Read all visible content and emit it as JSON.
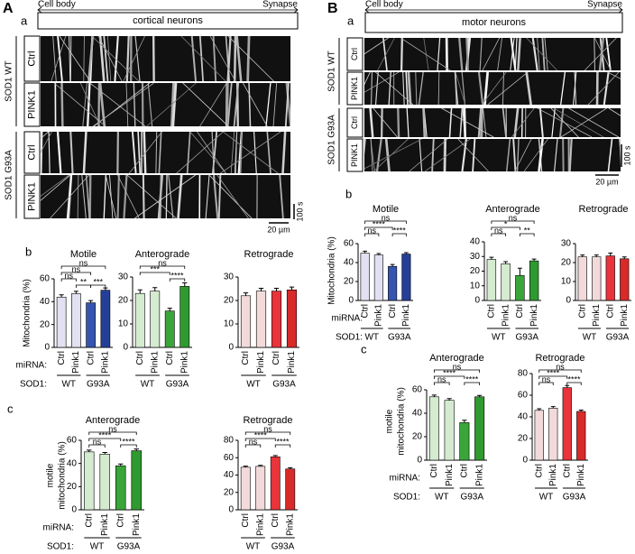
{
  "panel_A": {
    "label": "A",
    "a": {
      "label": "a",
      "cell_body": "Cell body",
      "synapse": "Synapse",
      "cell_type": "cortical neurons",
      "genotypes": [
        {
          "name": "SOD1 WT",
          "conditions": [
            "Ctrl",
            "PINK1"
          ]
        },
        {
          "name": "SOD1 G93A",
          "conditions": [
            "Ctrl",
            "PINK1"
          ]
        }
      ],
      "time_scale": "100 s",
      "length_scale": "20 µm"
    },
    "b": {
      "label": "b",
      "ylabel": "Mitochondria (%)",
      "mirna": "miRNA:",
      "sod1": "SOD1:"
    },
    "c": {
      "label": "c",
      "ylabel": [
        "motile",
        "mitochondria (%)"
      ],
      "mirna": "miRNA:",
      "sod1": "SOD1:"
    }
  },
  "panel_B": {
    "label": "B",
    "a": {
      "label": "a",
      "cell_body": "Cell body",
      "synapse": "Synapse",
      "cell_type": "motor neurons",
      "genotypes": [
        {
          "name": "SOD1 WT",
          "conditions": [
            "Ctrl",
            "PINK1"
          ]
        },
        {
          "name": "SOD1 G93A",
          "conditions": [
            "Ctrl",
            "PINK1"
          ]
        }
      ],
      "time_scale": "100 s",
      "length_scale": "20 µm"
    },
    "b": {
      "label": "b",
      "ylabel": "Mitochondria (%)",
      "mirna": "miRNA:",
      "sod1": "SOD1:"
    },
    "c": {
      "label": "c",
      "ylabel": [
        "motile",
        "mitochondria (%)"
      ],
      "mirna": "miRNA:",
      "sod1": "SOD1:"
    }
  },
  "chart_data": [
    {
      "type": "bar",
      "title": "Motile",
      "categories": [
        "Ctrl",
        "Pink1",
        "Ctrl",
        "Pink1"
      ],
      "groups": [
        "WT",
        "G93A"
      ],
      "values": [
        44,
        47,
        39,
        50
      ],
      "errors": [
        2,
        2,
        2,
        2
      ],
      "colors": [
        "#e2e1f2",
        "#e2e1f2",
        "#3555b0",
        "#233f98"
      ],
      "ylim": [
        0,
        60
      ],
      "yticks": [
        0,
        20,
        40,
        60
      ],
      "annotations": [
        "ns",
        "ns",
        "ns",
        "**",
        "***"
      ]
    },
    {
      "type": "bar",
      "title": "Anterograde",
      "categories": [
        "Ctrl",
        "Pink1",
        "Ctrl",
        "Pink1"
      ],
      "groups": [
        "WT",
        "G93A"
      ],
      "values": [
        23,
        24,
        15.5,
        26
      ],
      "errors": [
        1.5,
        1.5,
        1.2,
        1.5
      ],
      "colors": [
        "#d4ebd0",
        "#d4ebd0",
        "#3aa63a",
        "#2f9a2f"
      ],
      "ylim": [
        0,
        30
      ],
      "yticks": [
        0,
        10,
        20,
        30
      ],
      "annotations": [
        "ns",
        "***",
        "****"
      ]
    },
    {
      "type": "bar",
      "title": "Retrograde",
      "categories": [
        "Ctrl",
        "Pink1",
        "Ctrl",
        "Pink1"
      ],
      "groups": [
        "WT",
        "G93A"
      ],
      "values": [
        22,
        24,
        24,
        24.5
      ],
      "errors": [
        1.2,
        1.2,
        1.2,
        1.2
      ],
      "colors": [
        "#f3dada",
        "#f3dada",
        "#e8343a",
        "#d92a2a"
      ],
      "ylim": [
        0,
        30
      ],
      "yticks": [
        0,
        10,
        20,
        30
      ],
      "annotations": []
    },
    {
      "type": "bar",
      "title": "Anterograde",
      "categories": [
        "Ctrl",
        "Pink1",
        "Ctrl",
        "Pink1"
      ],
      "groups": [
        "WT",
        "G93A"
      ],
      "values": [
        50,
        48,
        38,
        51
      ],
      "errors": [
        1.5,
        1.5,
        1.5,
        1.5
      ],
      "colors": [
        "#d4ebd0",
        "#d4ebd0",
        "#3aa63a",
        "#2f9a2f"
      ],
      "ylim": [
        0,
        60
      ],
      "yticks": [
        0,
        20,
        40,
        60
      ],
      "annotations": [
        "ns",
        "****",
        "ns",
        "****"
      ]
    },
    {
      "type": "bar",
      "title": "Retrograde",
      "categories": [
        "Ctrl",
        "Pink1",
        "Ctrl",
        "Pink1"
      ],
      "groups": [
        "WT",
        "G93A"
      ],
      "values": [
        49,
        50,
        61,
        47
      ],
      "errors": [
        1.2,
        1.2,
        1.5,
        1.5
      ],
      "colors": [
        "#f3dada",
        "#f3dada",
        "#e8343a",
        "#d92a2a"
      ],
      "ylim": [
        0,
        80
      ],
      "yticks": [
        0,
        20,
        40,
        60,
        80
      ],
      "annotations": [
        "ns",
        "****",
        "ns",
        "****"
      ]
    },
    {
      "type": "bar",
      "title": "Motile",
      "categories": [
        "Ctrl",
        "Pink1",
        "Ctrl",
        "Pink1"
      ],
      "groups": [
        "WT",
        "G93A"
      ],
      "values": [
        50,
        48,
        36,
        49
      ],
      "errors": [
        2,
        1.5,
        2,
        1.5
      ],
      "colors": [
        "#e2e1f2",
        "#e2e1f2",
        "#3555b0",
        "#233f98"
      ],
      "ylim": [
        0,
        60
      ],
      "yticks": [
        0,
        20,
        40,
        60
      ],
      "annotations": [
        "ns",
        "****",
        "ns",
        "****"
      ]
    },
    {
      "type": "bar",
      "title": "Anterograde",
      "categories": [
        "Ctrl",
        "Pink1",
        "Ctrl",
        "Pink1"
      ],
      "groups": [
        "WT",
        "G93A"
      ],
      "values": [
        28,
        25,
        17,
        27
      ],
      "errors": [
        1.5,
        1.5,
        5,
        1.2
      ],
      "colors": [
        "#d4ebd0",
        "#d4ebd0",
        "#3aa63a",
        "#2f9a2f"
      ],
      "ylim": [
        0,
        40
      ],
      "yticks": [
        0,
        10,
        20,
        30,
        40
      ],
      "annotations": [
        "ns",
        "*",
        "ns",
        "**"
      ]
    },
    {
      "type": "bar",
      "title": "Retrograde",
      "categories": [
        "Ctrl",
        "Pink1",
        "Ctrl",
        "Pink1"
      ],
      "groups": [
        "WT",
        "G93A"
      ],
      "values": [
        23,
        23,
        23.5,
        22
      ],
      "errors": [
        1,
        1,
        1.5,
        1
      ],
      "colors": [
        "#f3dada",
        "#f3dada",
        "#e8343a",
        "#d92a2a"
      ],
      "ylim": [
        0,
        30
      ],
      "yticks": [
        0,
        10,
        20,
        30
      ],
      "annotations": []
    },
    {
      "type": "bar",
      "title": "Anterograde",
      "categories": [
        "Ctrl",
        "Pink1",
        "Ctrl",
        "Pink1"
      ],
      "groups": [
        "WT",
        "G93A"
      ],
      "values": [
        54,
        51,
        32,
        54
      ],
      "errors": [
        1.5,
        1.5,
        2,
        1.2
      ],
      "colors": [
        "#d4ebd0",
        "#d4ebd0",
        "#3aa63a",
        "#2f9a2f"
      ],
      "ylim": [
        0,
        60
      ],
      "yticks": [
        0,
        20,
        40,
        60
      ],
      "annotations": [
        "ns",
        "****",
        "ns",
        "****"
      ]
    },
    {
      "type": "bar",
      "title": "Retrograde",
      "categories": [
        "Ctrl",
        "Pink1",
        "Ctrl",
        "Pink1"
      ],
      "groups": [
        "WT",
        "G93A"
      ],
      "values": [
        46,
        48,
        67,
        45
      ],
      "errors": [
        1.5,
        1.5,
        2,
        1.2
      ],
      "colors": [
        "#f3dada",
        "#f3dada",
        "#e8343a",
        "#d92a2a"
      ],
      "ylim": [
        0,
        80
      ],
      "yticks": [
        0,
        20,
        40,
        60,
        80
      ],
      "annotations": [
        "ns",
        "****",
        "ns",
        "****"
      ]
    }
  ]
}
